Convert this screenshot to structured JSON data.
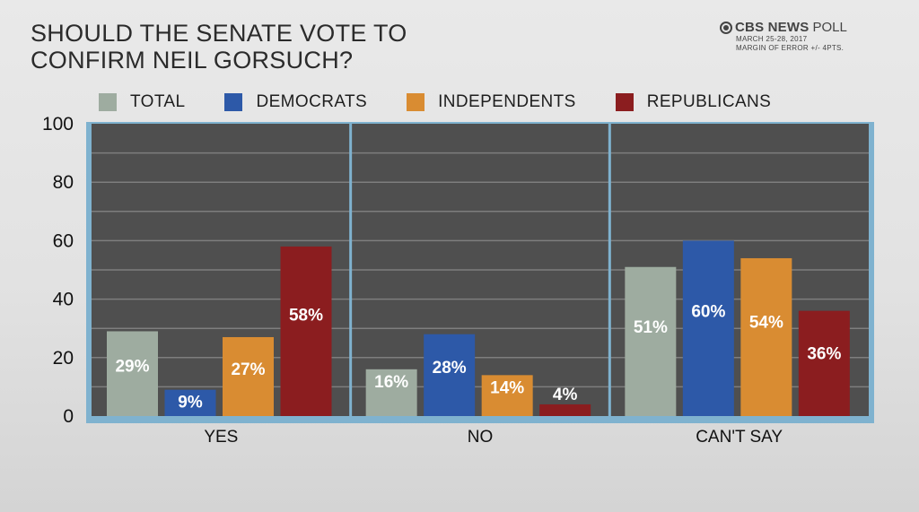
{
  "header": {
    "title_line1": "SHOULD THE SENATE VOTE TO",
    "title_line2": "CONFIRM NEIL GORSUCH?",
    "brand_name": "CBS NEWS",
    "brand_poll": "POLL",
    "brand_date": "MARCH 25-28, 2017",
    "brand_margin": "MARGIN OF ERROR +/- 4PTS."
  },
  "colors": {
    "total": "#9eaca0",
    "democrats": "#2d59a8",
    "independents": "#d98c32",
    "republicans": "#8b1d1f",
    "plot_bg": "#4f4f4f",
    "axis_frame": "#7fb2cf"
  },
  "chart_data": {
    "type": "bar",
    "title": "SHOULD THE SENATE VOTE TO CONFIRM NEIL GORSUCH?",
    "categories": [
      "YES",
      "NO",
      "CAN'T SAY"
    ],
    "series": [
      {
        "name": "TOTAL",
        "key": "total",
        "values": [
          29,
          16,
          51
        ]
      },
      {
        "name": "DEMOCRATS",
        "key": "democrats",
        "values": [
          9,
          28,
          60
        ]
      },
      {
        "name": "INDEPENDENTS",
        "key": "independents",
        "values": [
          27,
          14,
          54
        ]
      },
      {
        "name": "REPUBLICANS",
        "key": "republicans",
        "values": [
          58,
          4,
          36
        ]
      }
    ],
    "ylim": [
      0,
      100
    ],
    "yticks": [
      "0",
      "20",
      "40",
      "60",
      "80",
      "100"
    ],
    "value_suffix": "%",
    "xlabel": "",
    "ylabel": "",
    "legend_position": "top",
    "grid": true
  }
}
